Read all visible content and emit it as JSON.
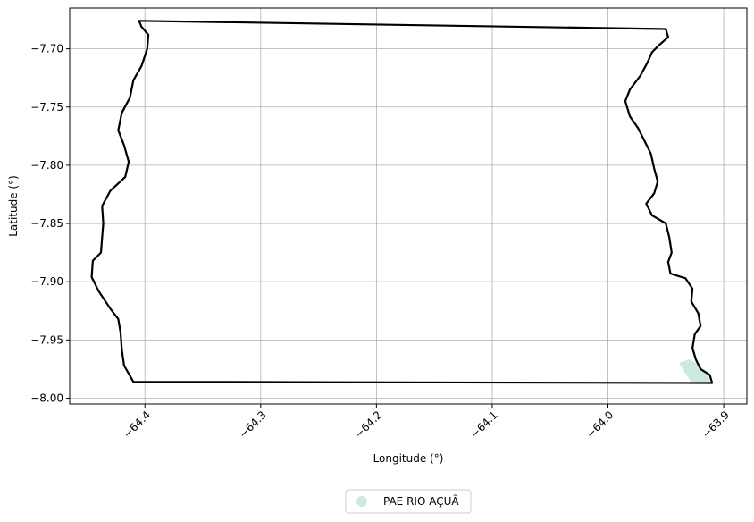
{
  "chart_data": {
    "type": "map",
    "xlabel": "Longitude (°)",
    "ylabel": "Latitude (°)",
    "xlim": [
      -64.465,
      -63.88
    ],
    "ylim": [
      -8.005,
      -7.665
    ],
    "x_ticks": [
      -64.4,
      -64.3,
      -64.2,
      -64.1,
      -64.0,
      -63.9
    ],
    "x_tick_labels": [
      "−64.4",
      "−64.3",
      "−64.2",
      "−64.1",
      "−64.0",
      "−63.9"
    ],
    "y_ticks": [
      -7.7,
      -7.75,
      -7.8,
      -7.85,
      -7.9,
      -7.95,
      -8.0
    ],
    "y_tick_labels": [
      "−7.70",
      "−7.75",
      "−7.80",
      "−7.85",
      "−7.90",
      "−7.95",
      "−8.00"
    ],
    "grid": true,
    "legend_position": "bottom-center",
    "boundary_color": "#000000",
    "boundary": [
      [
        -64.405,
        -7.676
      ],
      [
        -63.95,
        -7.683
      ],
      [
        -63.948,
        -7.69
      ],
      [
        -63.956,
        -7.697
      ],
      [
        -63.962,
        -7.703
      ],
      [
        -63.966,
        -7.712
      ],
      [
        -63.972,
        -7.723
      ],
      [
        -63.981,
        -7.735
      ],
      [
        -63.985,
        -7.745
      ],
      [
        -63.981,
        -7.758
      ],
      [
        -63.974,
        -7.768
      ],
      [
        -63.969,
        -7.778
      ],
      [
        -63.963,
        -7.79
      ],
      [
        -63.96,
        -7.803
      ],
      [
        -63.957,
        -7.814
      ],
      [
        -63.96,
        -7.824
      ],
      [
        -63.967,
        -7.833
      ],
      [
        -63.962,
        -7.843
      ],
      [
        -63.95,
        -7.85
      ],
      [
        -63.947,
        -7.862
      ],
      [
        -63.945,
        -7.875
      ],
      [
        -63.948,
        -7.883
      ],
      [
        -63.946,
        -7.893
      ],
      [
        -63.933,
        -7.897
      ],
      [
        -63.927,
        -7.906
      ],
      [
        -63.928,
        -7.917
      ],
      [
        -63.922,
        -7.927
      ],
      [
        -63.92,
        -7.938
      ],
      [
        -63.925,
        -7.945
      ],
      [
        -63.927,
        -7.957
      ],
      [
        -63.924,
        -7.967
      ],
      [
        -63.92,
        -7.975
      ],
      [
        -63.912,
        -7.98
      ],
      [
        -63.91,
        -7.987
      ],
      [
        -64.41,
        -7.986
      ],
      [
        -64.418,
        -7.972
      ],
      [
        -64.42,
        -7.958
      ],
      [
        -64.421,
        -7.944
      ],
      [
        -64.423,
        -7.932
      ],
      [
        -64.43,
        -7.923
      ],
      [
        -64.44,
        -7.908
      ],
      [
        -64.446,
        -7.896
      ],
      [
        -64.445,
        -7.882
      ],
      [
        -64.438,
        -7.875
      ],
      [
        -64.437,
        -7.862
      ],
      [
        -64.436,
        -7.85
      ],
      [
        -64.437,
        -7.835
      ],
      [
        -64.43,
        -7.822
      ],
      [
        -64.417,
        -7.81
      ],
      [
        -64.414,
        -7.797
      ],
      [
        -64.418,
        -7.783
      ],
      [
        -64.423,
        -7.77
      ],
      [
        -64.42,
        -7.755
      ],
      [
        -64.413,
        -7.742
      ],
      [
        -64.41,
        -7.727
      ],
      [
        -64.403,
        -7.715
      ],
      [
        -64.398,
        -7.7
      ],
      [
        -64.397,
        -7.688
      ],
      [
        -64.403,
        -7.681
      ],
      [
        -64.405,
        -7.676
      ]
    ],
    "series": [
      {
        "name": "PAE RIO AÇUÃ",
        "color": "#cde8dc",
        "polygon": [
          [
            -63.938,
            -7.97
          ],
          [
            -63.93,
            -7.967
          ],
          [
            -63.922,
            -7.971
          ],
          [
            -63.914,
            -7.98
          ],
          [
            -63.912,
            -7.987
          ],
          [
            -63.927,
            -7.987
          ],
          [
            -63.933,
            -7.978
          ],
          [
            -63.938,
            -7.97
          ]
        ]
      }
    ]
  }
}
